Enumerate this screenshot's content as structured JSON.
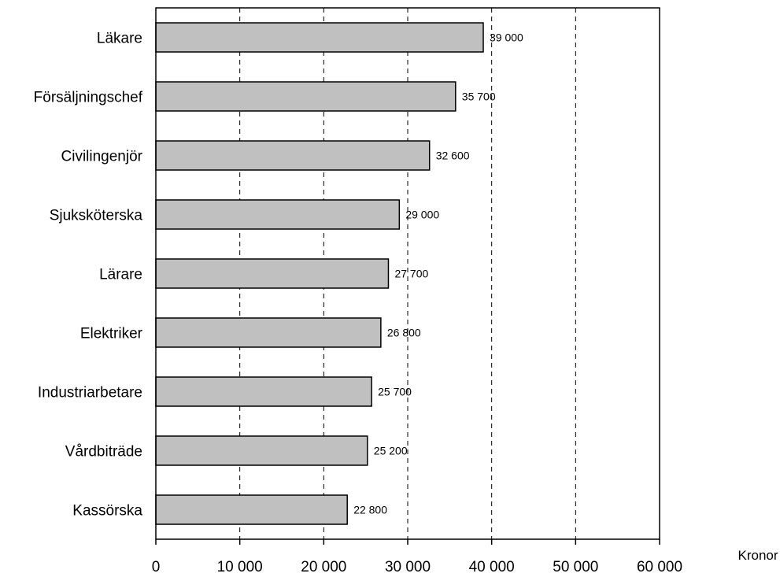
{
  "chart_data": {
    "type": "bar",
    "orientation": "horizontal",
    "categories": [
      "Läkare",
      "Försäljningschef",
      "Civilingenjör",
      "Sjuksköterska",
      "Lärare",
      "Elektriker",
      "Industriarbetare",
      "Vårdbiträde",
      "Kassörska"
    ],
    "values": [
      39000,
      35700,
      32600,
      29000,
      27700,
      26800,
      25700,
      25200,
      22800
    ],
    "data_labels": [
      "39 000",
      "35 700",
      "32 600",
      "29 000",
      "27 700",
      "26 800",
      "25 700",
      "25 200",
      "22 800"
    ],
    "xlim": [
      0,
      60000
    ],
    "x_ticks": [
      0,
      10000,
      20000,
      30000,
      40000,
      50000,
      60000
    ],
    "x_tick_labels": [
      "0",
      "10 000",
      "20 000",
      "30 000",
      "40 000",
      "50 000",
      "60 000"
    ],
    "xlabel": "Kronor",
    "grid": "vertical dashed",
    "bar_color": "#c0c0c0",
    "bar_edge_color": "#000000"
  }
}
